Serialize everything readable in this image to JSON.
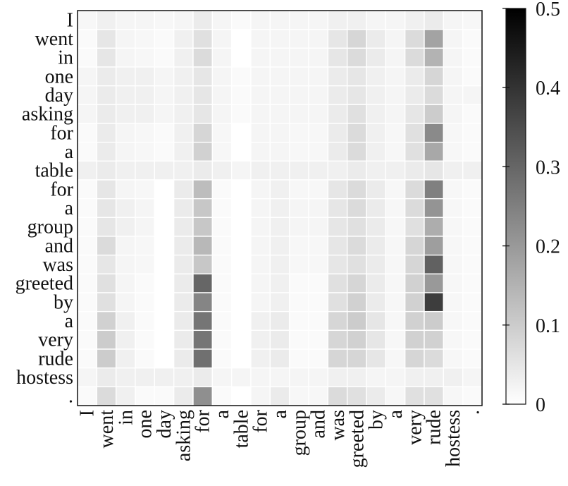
{
  "chart_data": {
    "type": "heatmap",
    "title": "",
    "xlabel": "",
    "ylabel": "",
    "x_tokens": [
      "I",
      "went",
      "in",
      "one",
      "day",
      "asking",
      "for",
      "a",
      "table",
      "for",
      "a",
      "group",
      "and",
      "was",
      "greeted",
      "by",
      "a",
      "very",
      "rude",
      "hostess",
      "."
    ],
    "y_tokens": [
      "I",
      "went",
      "in",
      "one",
      "day",
      "asking",
      "for",
      "a",
      "table",
      "for",
      "a",
      "group",
      "and",
      "was",
      "greeted",
      "by",
      "a",
      "very",
      "rude",
      "hostess",
      "."
    ],
    "colorbar": {
      "min": 0,
      "max": 0.5,
      "ticks": [
        0,
        0.1,
        0.2,
        0.3,
        0.4,
        0.5
      ],
      "tick_labels": [
        "0",
        "0.1",
        "0.2",
        "0.3",
        "0.4",
        "0.5"
      ],
      "low_color": "#ffffff",
      "high_color": "#000000"
    },
    "grid": "white cell borders",
    "values": [
      [
        0.015,
        0.03,
        0.02,
        0.02,
        0.015,
        0.02,
        0.04,
        0.02,
        0.01,
        0.02,
        0.02,
        0.02,
        0.02,
        0.03,
        0.03,
        0.02,
        0.02,
        0.03,
        0.04,
        0.02,
        0.015
      ],
      [
        0.01,
        0.05,
        0.02,
        0.015,
        0.01,
        0.03,
        0.06,
        0.02,
        0.0,
        0.02,
        0.02,
        0.02,
        0.02,
        0.05,
        0.08,
        0.04,
        0.02,
        0.07,
        0.18,
        0.02,
        0.01
      ],
      [
        0.01,
        0.05,
        0.02,
        0.015,
        0.01,
        0.03,
        0.07,
        0.02,
        0.0,
        0.02,
        0.02,
        0.02,
        0.02,
        0.05,
        0.07,
        0.04,
        0.02,
        0.07,
        0.15,
        0.02,
        0.01
      ],
      [
        0.02,
        0.04,
        0.03,
        0.03,
        0.02,
        0.03,
        0.05,
        0.02,
        0.01,
        0.02,
        0.02,
        0.02,
        0.02,
        0.04,
        0.05,
        0.03,
        0.02,
        0.04,
        0.08,
        0.02,
        0.01
      ],
      [
        0.02,
        0.04,
        0.03,
        0.03,
        0.02,
        0.03,
        0.05,
        0.02,
        0.01,
        0.02,
        0.02,
        0.02,
        0.02,
        0.04,
        0.05,
        0.03,
        0.02,
        0.04,
        0.07,
        0.02,
        0.02
      ],
      [
        0.02,
        0.04,
        0.03,
        0.03,
        0.02,
        0.03,
        0.05,
        0.02,
        0.01,
        0.02,
        0.02,
        0.02,
        0.02,
        0.04,
        0.06,
        0.03,
        0.02,
        0.05,
        0.1,
        0.02,
        0.01
      ],
      [
        0.01,
        0.04,
        0.02,
        0.015,
        0.01,
        0.03,
        0.08,
        0.015,
        0.0,
        0.02,
        0.02,
        0.015,
        0.015,
        0.04,
        0.07,
        0.03,
        0.015,
        0.06,
        0.23,
        0.015,
        0.01
      ],
      [
        0.01,
        0.04,
        0.02,
        0.015,
        0.01,
        0.03,
        0.09,
        0.015,
        0.0,
        0.02,
        0.02,
        0.015,
        0.015,
        0.04,
        0.07,
        0.03,
        0.015,
        0.06,
        0.17,
        0.015,
        0.01
      ],
      [
        0.03,
        0.04,
        0.03,
        0.03,
        0.03,
        0.03,
        0.04,
        0.03,
        0.02,
        0.03,
        0.03,
        0.03,
        0.03,
        0.03,
        0.04,
        0.03,
        0.03,
        0.04,
        0.05,
        0.03,
        0.03
      ],
      [
        0.01,
        0.05,
        0.02,
        0.015,
        0.0,
        0.04,
        0.13,
        0.01,
        0.0,
        0.02,
        0.03,
        0.015,
        0.015,
        0.05,
        0.07,
        0.04,
        0.015,
        0.07,
        0.25,
        0.015,
        0.01
      ],
      [
        0.01,
        0.05,
        0.03,
        0.02,
        0.0,
        0.04,
        0.11,
        0.01,
        0.0,
        0.02,
        0.03,
        0.02,
        0.02,
        0.05,
        0.07,
        0.04,
        0.015,
        0.07,
        0.21,
        0.015,
        0.01
      ],
      [
        0.01,
        0.05,
        0.03,
        0.02,
        0.0,
        0.04,
        0.11,
        0.01,
        0.0,
        0.02,
        0.03,
        0.02,
        0.02,
        0.05,
        0.06,
        0.04,
        0.015,
        0.06,
        0.16,
        0.015,
        0.01
      ],
      [
        0.01,
        0.07,
        0.02,
        0.015,
        0.0,
        0.04,
        0.14,
        0.01,
        0.0,
        0.02,
        0.03,
        0.015,
        0.015,
        0.05,
        0.07,
        0.04,
        0.015,
        0.08,
        0.19,
        0.015,
        0.01
      ],
      [
        0.01,
        0.05,
        0.02,
        0.015,
        0.0,
        0.04,
        0.11,
        0.01,
        0.0,
        0.02,
        0.03,
        0.015,
        0.015,
        0.05,
        0.06,
        0.04,
        0.015,
        0.08,
        0.31,
        0.015,
        0.01
      ],
      [
        0.01,
        0.06,
        0.02,
        0.01,
        0.0,
        0.04,
        0.3,
        0.01,
        0.0,
        0.02,
        0.03,
        0.01,
        0.01,
        0.06,
        0.08,
        0.04,
        0.015,
        0.09,
        0.2,
        0.015,
        0.01
      ],
      [
        0.01,
        0.06,
        0.02,
        0.01,
        0.0,
        0.04,
        0.24,
        0.01,
        0.0,
        0.02,
        0.03,
        0.01,
        0.01,
        0.06,
        0.09,
        0.04,
        0.015,
        0.09,
        0.38,
        0.015,
        0.01
      ],
      [
        0.01,
        0.09,
        0.03,
        0.01,
        0.0,
        0.04,
        0.27,
        0.01,
        0.0,
        0.03,
        0.04,
        0.01,
        0.01,
        0.08,
        0.1,
        0.05,
        0.015,
        0.09,
        0.1,
        0.015,
        0.01
      ],
      [
        0.01,
        0.1,
        0.03,
        0.01,
        0.0,
        0.04,
        0.27,
        0.01,
        0.0,
        0.03,
        0.04,
        0.01,
        0.01,
        0.08,
        0.09,
        0.05,
        0.015,
        0.09,
        0.09,
        0.015,
        0.01
      ],
      [
        0.01,
        0.1,
        0.03,
        0.01,
        0.0,
        0.04,
        0.28,
        0.01,
        0.0,
        0.03,
        0.04,
        0.01,
        0.01,
        0.08,
        0.08,
        0.05,
        0.015,
        0.08,
        0.07,
        0.015,
        0.01
      ],
      [
        0.02,
        0.04,
        0.03,
        0.03,
        0.03,
        0.03,
        0.04,
        0.02,
        0.02,
        0.02,
        0.02,
        0.02,
        0.02,
        0.03,
        0.03,
        0.02,
        0.02,
        0.03,
        0.03,
        0.03,
        0.02
      ],
      [
        0.01,
        0.07,
        0.03,
        0.01,
        0.01,
        0.04,
        0.22,
        0.01,
        0.0,
        0.02,
        0.04,
        0.015,
        0.015,
        0.07,
        0.06,
        0.04,
        0.015,
        0.06,
        0.06,
        0.015,
        0.01
      ]
    ]
  }
}
